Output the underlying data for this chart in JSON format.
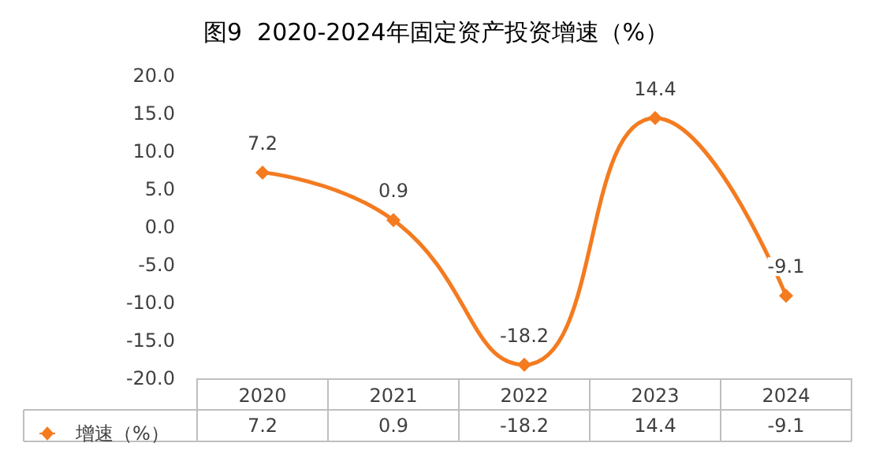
{
  "chart_data": {
    "type": "line",
    "title": "图9  2020-2024年固定资产投资增速（%）",
    "categories": [
      "2020",
      "2021",
      "2022",
      "2023",
      "2024"
    ],
    "series": [
      {
        "name": "增速（%）",
        "color": "#f47b20",
        "values": [
          7.2,
          0.9,
          -18.2,
          14.4,
          -9.1
        ]
      }
    ],
    "annotations": [
      {
        "text": "7.2",
        "x": "2020"
      },
      {
        "text": "0.9",
        "x": "2021"
      },
      {
        "text": "-18.2",
        "x": "2022"
      },
      {
        "text": "14.4",
        "x": "2023"
      },
      {
        "text": "-9.1",
        "x": "2024"
      }
    ],
    "ylim": [
      -20,
      20
    ],
    "yticks": [
      {
        "value": -20,
        "label": "-20.0"
      },
      {
        "value": -15,
        "label": "-15.0"
      },
      {
        "value": -10,
        "label": "-10.0"
      },
      {
        "value": -5,
        "label": "-5.0"
      },
      {
        "value": 0,
        "label": "0.0"
      },
      {
        "value": 5,
        "label": "5.0"
      },
      {
        "value": 10,
        "label": "10.0"
      },
      {
        "value": 15,
        "label": "15.0"
      },
      {
        "value": 20,
        "label": "20.0"
      }
    ],
    "grid": false,
    "legend": "bottom left",
    "marker": "diamond",
    "line_style": "solid",
    "data_labels": true
  }
}
